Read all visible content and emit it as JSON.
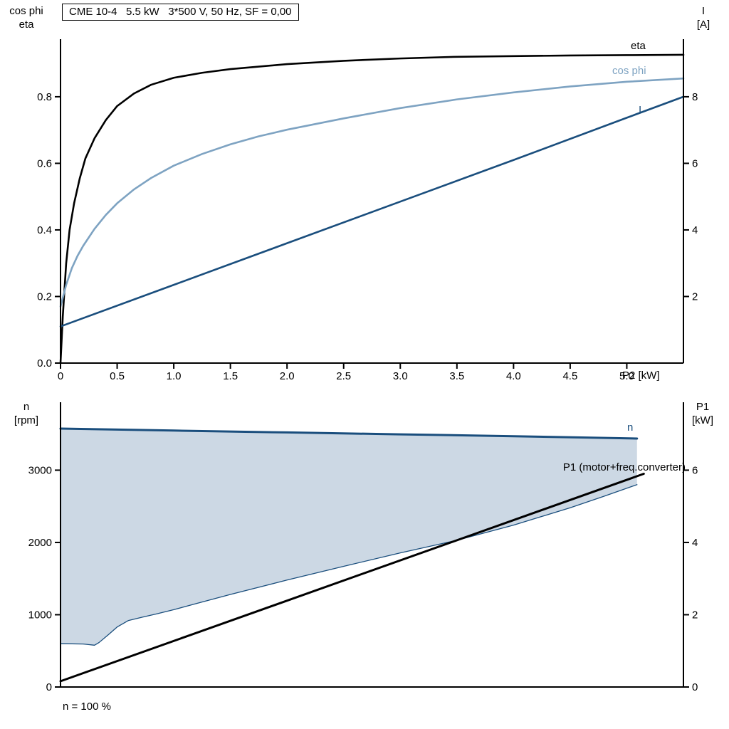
{
  "title_box": "CME 10-4   5.5 kW   3*500 V, 50 Hz, SF = 0,00",
  "colors": {
    "axis": "#000000",
    "eta_curve": "#000000",
    "cos_phi_curve": "#7ea3c2",
    "current_curve": "#1a4e7d",
    "speed_curve": "#1a4e7d",
    "p1_curve": "#000000",
    "speed_band_fill": "#ccd8e4"
  },
  "chart_data": [
    {
      "type": "line",
      "title": "CME 10-4   5.5 kW   3*500 V, 50 Hz, SF = 0,00",
      "grid": false,
      "x_axis": {
        "label": "P2 [kW]",
        "range": [
          0,
          5.5
        ],
        "ticks": [
          0,
          0.5,
          1,
          1.5,
          2,
          2.5,
          3,
          3.5,
          4,
          4.5,
          5
        ],
        "tick_labels": [
          "0",
          "0.5",
          "1.0",
          "1.5",
          "2.0",
          "2.5",
          "3.0",
          "3.5",
          "4.0",
          "4.5",
          "5.0"
        ]
      },
      "y_left": {
        "label": "cos phi\neta",
        "range": [
          0,
          0.973
        ],
        "ticks": [
          0,
          0.2,
          0.4,
          0.6,
          0.8
        ],
        "tick_labels": [
          "0.0",
          "0.2",
          "0.4",
          "0.6",
          "0.8"
        ]
      },
      "y_right": {
        "label": "I\n[A]",
        "range": [
          0,
          9.73
        ],
        "ticks": [
          2,
          4,
          6,
          8
        ],
        "tick_labels": [
          "2",
          "4",
          "6",
          "8"
        ]
      },
      "series": [
        {
          "name": "eta",
          "label": "eta",
          "axis": "left",
          "color": "#000000",
          "width": 2.6,
          "points": [
            [
              0,
              0
            ],
            [
              0.02,
              0.14
            ],
            [
              0.05,
              0.3
            ],
            [
              0.08,
              0.4
            ],
            [
              0.12,
              0.48
            ],
            [
              0.17,
              0.555
            ],
            [
              0.22,
              0.615
            ],
            [
              0.3,
              0.675
            ],
            [
              0.4,
              0.73
            ],
            [
              0.5,
              0.772
            ],
            [
              0.65,
              0.81
            ],
            [
              0.8,
              0.836
            ],
            [
              1.0,
              0.857
            ],
            [
              1.25,
              0.872
            ],
            [
              1.5,
              0.883
            ],
            [
              2.0,
              0.898
            ],
            [
              2.5,
              0.908
            ],
            [
              3.0,
              0.915
            ],
            [
              3.5,
              0.92
            ],
            [
              4.0,
              0.922
            ],
            [
              4.5,
              0.924
            ],
            [
              5.0,
              0.925
            ],
            [
              5.5,
              0.926
            ]
          ]
        },
        {
          "name": "cos phi",
          "label": "cos phi",
          "axis": "left",
          "color": "#7ea3c2",
          "width": 2.6,
          "points": [
            [
              0,
              0.17
            ],
            [
              0.05,
              0.235
            ],
            [
              0.1,
              0.285
            ],
            [
              0.15,
              0.322
            ],
            [
              0.2,
              0.352
            ],
            [
              0.3,
              0.403
            ],
            [
              0.4,
              0.445
            ],
            [
              0.5,
              0.48
            ],
            [
              0.65,
              0.522
            ],
            [
              0.8,
              0.556
            ],
            [
              1.0,
              0.593
            ],
            [
              1.25,
              0.628
            ],
            [
              1.5,
              0.657
            ],
            [
              1.75,
              0.681
            ],
            [
              2.0,
              0.701
            ],
            [
              2.5,
              0.735
            ],
            [
              3.0,
              0.766
            ],
            [
              3.5,
              0.792
            ],
            [
              4.0,
              0.813
            ],
            [
              4.5,
              0.831
            ],
            [
              5.0,
              0.845
            ],
            [
              5.5,
              0.855
            ]
          ]
        },
        {
          "name": "I",
          "label": "I",
          "axis": "right",
          "color": "#1a4e7d",
          "width": 2.6,
          "points": [
            [
              0,
              1.1
            ],
            [
              1.0,
              2.35
            ],
            [
              2.0,
              3.6
            ],
            [
              3.0,
              4.85
            ],
            [
              4.0,
              6.1
            ],
            [
              5.0,
              7.37
            ],
            [
              5.5,
              8.0
            ]
          ]
        }
      ]
    },
    {
      "type": "line",
      "grid": false,
      "annotation": "n = 100 %",
      "x_axis": {
        "label": "",
        "range": [
          0,
          5.5
        ],
        "ticks": [],
        "tick_labels": []
      },
      "y_left": {
        "label": "n\n[rpm]",
        "range": [
          0,
          3940
        ],
        "ticks": [
          0,
          1000,
          2000,
          3000
        ],
        "tick_labels": [
          "0",
          "1000",
          "2000",
          "3000"
        ]
      },
      "y_right": {
        "label": "P1\n[kW]",
        "range": [
          0,
          7.88
        ],
        "ticks": [
          0,
          2,
          4,
          6
        ],
        "tick_labels": [
          "0",
          "2",
          "4",
          "6"
        ]
      },
      "fill_between": {
        "upper": "n",
        "lower": "n min",
        "color": "#ccd8e4"
      },
      "series": [
        {
          "name": "n min",
          "label": "",
          "axis": "left",
          "color": "#1a4e7d",
          "width": 1.3,
          "points": [
            [
              0,
              600
            ],
            [
              0.2,
              595
            ],
            [
              0.26,
              585
            ],
            [
              0.3,
              578
            ],
            [
              0.34,
              615
            ],
            [
              0.42,
              720
            ],
            [
              0.5,
              830
            ],
            [
              0.6,
              920
            ],
            [
              0.72,
              965
            ],
            [
              0.85,
              1012
            ],
            [
              1.0,
              1070
            ],
            [
              1.2,
              1155
            ],
            [
              1.5,
              1280
            ],
            [
              2.0,
              1480
            ],
            [
              2.5,
              1670
            ],
            [
              3.0,
              1855
            ],
            [
              3.5,
              2030
            ],
            [
              4.0,
              2240
            ],
            [
              4.5,
              2480
            ],
            [
              4.8,
              2640
            ],
            [
              5.09,
              2800
            ]
          ]
        },
        {
          "name": "n",
          "label": "n",
          "axis": "left",
          "color": "#1a4e7d",
          "width": 3,
          "points": [
            [
              0,
              3575
            ],
            [
              1.0,
              3548
            ],
            [
              2.0,
              3522
            ],
            [
              3.0,
              3496
            ],
            [
              4.0,
              3470
            ],
            [
              4.6,
              3452
            ],
            [
              5.09,
              3438
            ]
          ]
        },
        {
          "name": "P1",
          "label": "P1 (motor+freq.converter)",
          "axis": "right",
          "color": "#000000",
          "width": 3,
          "points": [
            [
              0,
              0.16
            ],
            [
              5.15,
              5.9
            ]
          ]
        }
      ]
    }
  ]
}
